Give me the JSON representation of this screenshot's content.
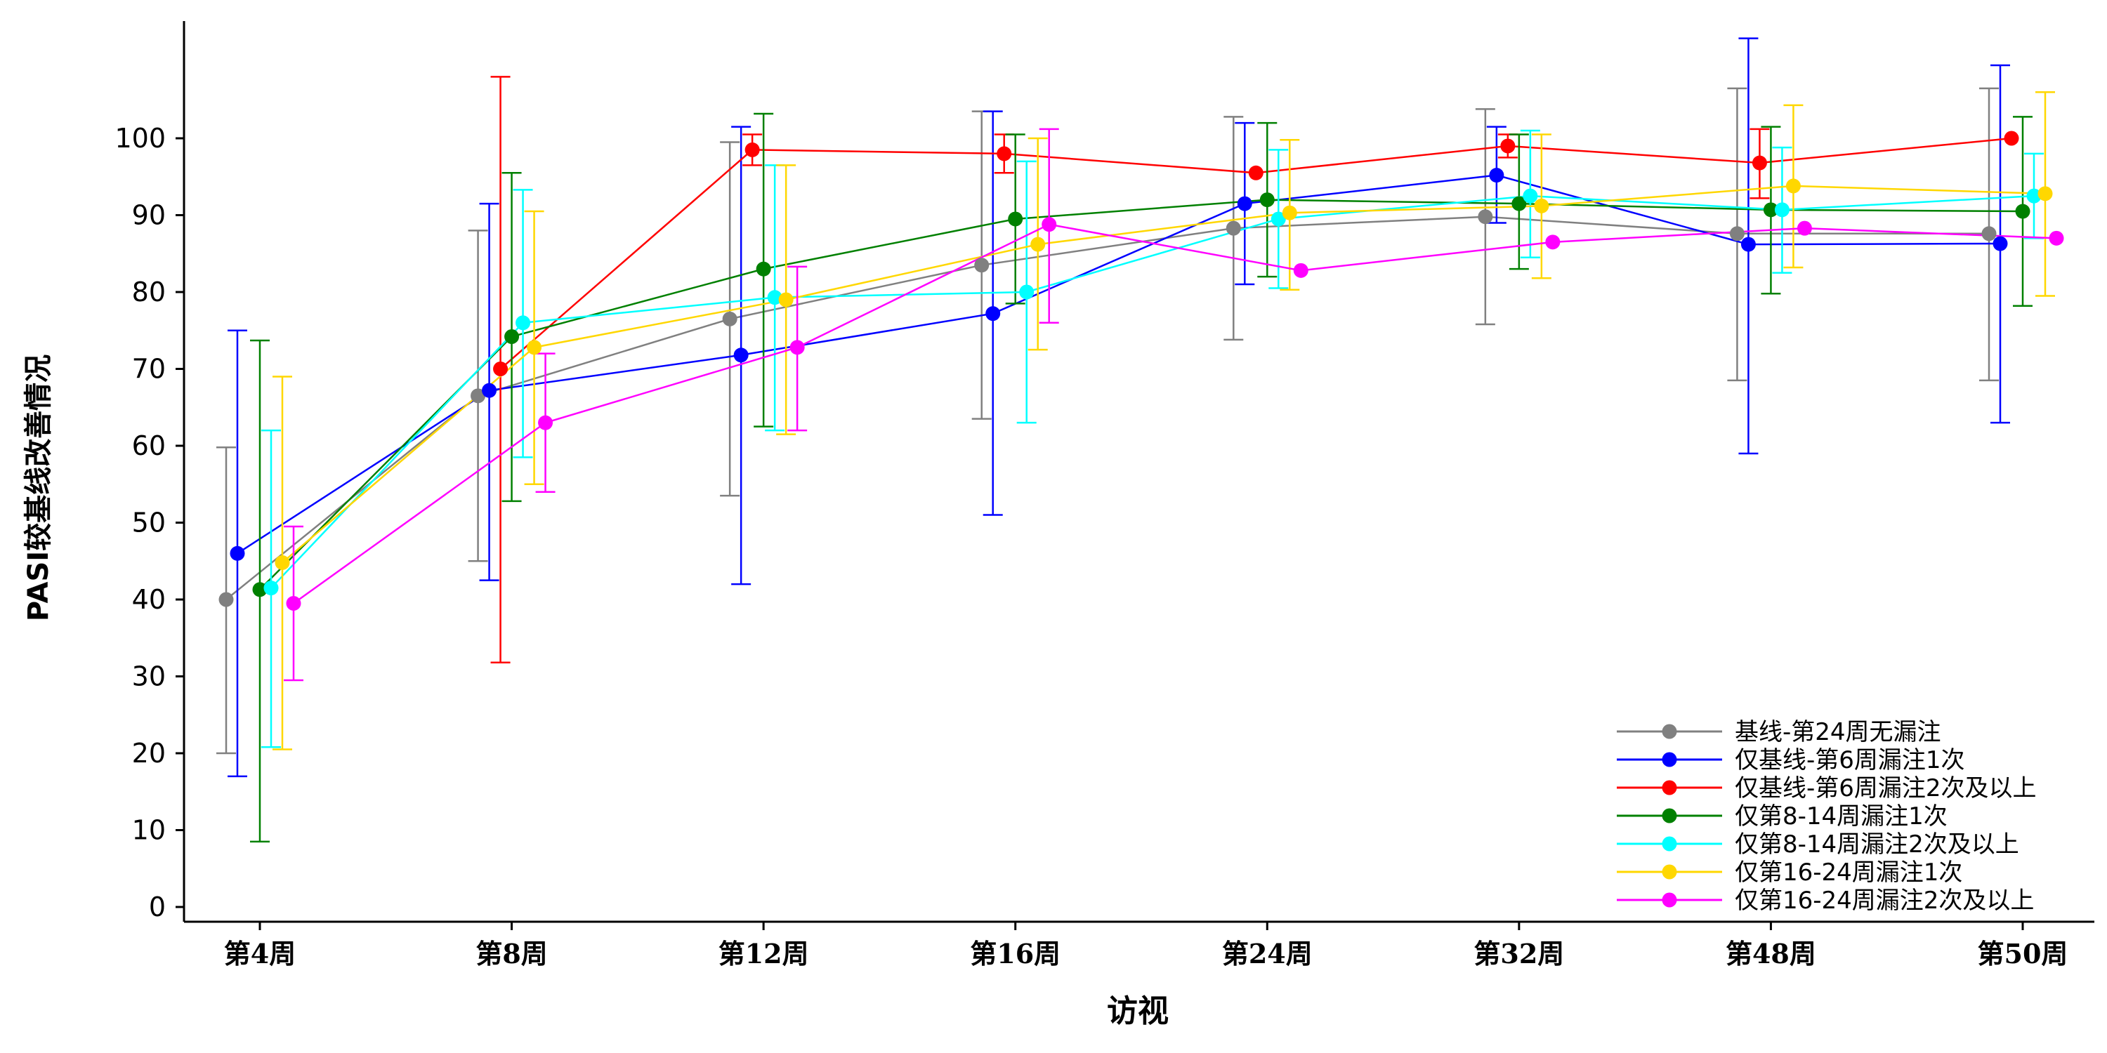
{
  "chart_data": {
    "type": "line",
    "xlabel": "访视",
    "ylabel": "PASI较基线改善情况",
    "categories": [
      "第4周",
      "第8周",
      "第12周",
      "第16周",
      "第24周",
      "第32周",
      "第48周",
      "第50周"
    ],
    "yticks": [
      0,
      10,
      20,
      30,
      40,
      50,
      60,
      70,
      80,
      90,
      100
    ],
    "ylim": [
      -2,
      115
    ],
    "grid": false,
    "legend_position": "bottom-right",
    "series": [
      {
        "name": "基线-第24周无漏注",
        "color": "#808080",
        "values": [
          40,
          66.5,
          76.5,
          83.5,
          88.3,
          89.8,
          87.6,
          87.6
        ],
        "err_low": [
          20,
          45,
          53.5,
          63.5,
          73.8,
          75.8,
          68.5,
          68.5
        ],
        "err_high": [
          59.8,
          88,
          99.5,
          103.5,
          102.8,
          103.8,
          106.5,
          106.5
        ]
      },
      {
        "name": "仅基线-第6周漏注1次",
        "color": "#0000ff",
        "values": [
          46,
          67.2,
          71.8,
          77.2,
          91.5,
          95.2,
          86.2,
          86.3
        ],
        "err_low": [
          17,
          42.5,
          42,
          51,
          81,
          89,
          59,
          63
        ],
        "err_high": [
          75,
          91.5,
          101.5,
          103.5,
          102,
          101.5,
          113,
          109.5
        ]
      },
      {
        "name": "仅基线-第6周漏注2次及以上",
        "color": "#ff0000",
        "values": [
          null,
          70,
          98.5,
          98,
          95.5,
          99,
          96.8,
          100
        ],
        "err_low": [
          null,
          31.8,
          96.5,
          95.5,
          null,
          97.5,
          92.2,
          null
        ],
        "err_high": [
          null,
          108,
          100.5,
          100.5,
          null,
          100.5,
          101.2,
          null
        ]
      },
      {
        "name": "仅第8-14周漏注1次",
        "color": "#008000",
        "values": [
          41.3,
          74.2,
          83,
          89.5,
          92,
          91.5,
          90.7,
          90.5
        ],
        "err_low": [
          8.5,
          52.8,
          62.5,
          78.5,
          82,
          83,
          79.8,
          78.2
        ],
        "err_high": [
          73.7,
          95.5,
          103.2,
          100.5,
          102,
          100.5,
          101.5,
          102.8
        ]
      },
      {
        "name": "仅第8-14周漏注2次及以上",
        "color": "#00ffff",
        "values": [
          41.5,
          76,
          79.3,
          80,
          89.5,
          92.5,
          90.7,
          92.5
        ],
        "err_low": [
          20.8,
          58.5,
          62,
          63,
          80.5,
          84.5,
          82.5,
          87
        ],
        "err_high": [
          62,
          93.3,
          96.5,
          97,
          98.5,
          101,
          98.8,
          98
        ]
      },
      {
        "name": "仅第16-24周漏注1次",
        "color": "#ffd700",
        "values": [
          44.8,
          72.8,
          79,
          86.2,
          90.3,
          91.2,
          93.8,
          92.8
        ],
        "err_low": [
          20.5,
          55,
          61.5,
          72.5,
          80.3,
          81.8,
          83.2,
          79.5
        ],
        "err_high": [
          69,
          90.5,
          96.5,
          100,
          99.8,
          100.5,
          104.3,
          106
        ]
      },
      {
        "name": "仅第16-24周漏注2次及以上",
        "color": "#ff00ff",
        "values": [
          39.5,
          63,
          72.8,
          88.8,
          82.8,
          86.5,
          88.3,
          87
        ],
        "err_low": [
          29.5,
          54,
          62,
          76,
          null,
          null,
          null,
          null
        ],
        "err_high": [
          49.5,
          72,
          83.3,
          101.2,
          null,
          null,
          null,
          null
        ]
      }
    ]
  }
}
